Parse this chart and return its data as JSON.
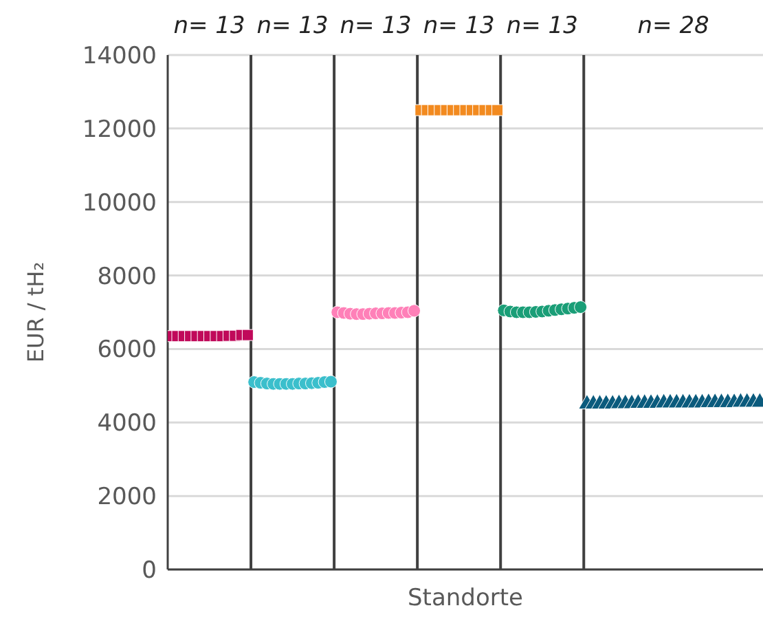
{
  "chart_data": {
    "type": "scatter",
    "xlabel": "Standorte",
    "ylabel": "EUR / tH₂",
    "ylim": [
      0,
      14000
    ],
    "yticks": [
      0,
      2000,
      4000,
      6000,
      8000,
      10000,
      12000,
      14000
    ],
    "tick_labels": "y",
    "grid": true,
    "legend": false,
    "annotations": [
      "n= 13",
      "n= 13",
      "n= 13",
      "n= 13",
      "n= 13",
      "n= 28"
    ],
    "categories": [
      null,
      null,
      null,
      null,
      null,
      null,
      null,
      null,
      null,
      null,
      null,
      null,
      null,
      null,
      null,
      null,
      null,
      null,
      null,
      null,
      null,
      null,
      null,
      null,
      null,
      null,
      null,
      null,
      null,
      null,
      null,
      null,
      null,
      null,
      null,
      null,
      null,
      null,
      null,
      null,
      null,
      null,
      null,
      null,
      null,
      null,
      null,
      null,
      null,
      null,
      null,
      null,
      null,
      null,
      null,
      null,
      null,
      null,
      null,
      null,
      null,
      null,
      null,
      null,
      null,
      null,
      null,
      null,
      null,
      null,
      null,
      null,
      null,
      null,
      null,
      null,
      null,
      null,
      null,
      null,
      null,
      null,
      null,
      null,
      null,
      null,
      null,
      null,
      null,
      null,
      null,
      null,
      null
    ],
    "series": [
      {
        "color": "#c0095a",
        "marker": "square",
        "values": [
          6350,
          6350,
          6350,
          6350,
          6350,
          6350,
          6350,
          6350,
          6350,
          6360,
          6360,
          6380,
          6380,
          null,
          null,
          null,
          null,
          null,
          null,
          null,
          null,
          null,
          null,
          null,
          null,
          null,
          null,
          null,
          null,
          null,
          null,
          null,
          null,
          null,
          null,
          null,
          null,
          null,
          null,
          null,
          null,
          null,
          null,
          null,
          null,
          null,
          null,
          null,
          null,
          null,
          null,
          null,
          null,
          null,
          null,
          null,
          null,
          null,
          null,
          null,
          null,
          null,
          null,
          null,
          null,
          null,
          null,
          null,
          null,
          null,
          null,
          null,
          null,
          null,
          null,
          null,
          null,
          null,
          null,
          null,
          null,
          null,
          null,
          null,
          null,
          null,
          null,
          null,
          null,
          null,
          null,
          null,
          null
        ]
      },
      {
        "color": "#3bbfcc",
        "marker": "circle",
        "values": [
          null,
          null,
          null,
          null,
          null,
          null,
          null,
          null,
          null,
          null,
          null,
          null,
          null,
          5100,
          5080,
          5060,
          5050,
          5050,
          5050,
          5050,
          5060,
          5060,
          5070,
          5080,
          5100,
          5110,
          null,
          null,
          null,
          null,
          null,
          null,
          null,
          null,
          null,
          null,
          null,
          null,
          null,
          null,
          null,
          null,
          null,
          null,
          null,
          null,
          null,
          null,
          null,
          null,
          null,
          null,
          null,
          null,
          null,
          null,
          null,
          null,
          null,
          null,
          null,
          null,
          null,
          null,
          null,
          null,
          null,
          null,
          null,
          null,
          null,
          null,
          null,
          null,
          null,
          null,
          null,
          null,
          null,
          null,
          null,
          null,
          null,
          null,
          null,
          null,
          null,
          null,
          null,
          null,
          null,
          null,
          null
        ]
      },
      {
        "color": "#ff80b8",
        "marker": "circle",
        "values": [
          null,
          null,
          null,
          null,
          null,
          null,
          null,
          null,
          null,
          null,
          null,
          null,
          null,
          null,
          null,
          null,
          null,
          null,
          null,
          null,
          null,
          null,
          null,
          null,
          null,
          null,
          7000,
          6980,
          6960,
          6950,
          6950,
          6960,
          6970,
          6970,
          6980,
          6980,
          6990,
          7000,
          7040,
          null,
          null,
          null,
          null,
          null,
          null,
          null,
          null,
          null,
          null,
          null,
          null,
          null,
          null,
          null,
          null,
          null,
          null,
          null,
          null,
          null,
          null,
          null,
          null,
          null,
          null,
          null,
          null,
          null,
          null,
          null,
          null,
          null,
          null,
          null,
          null,
          null,
          null,
          null,
          null,
          null,
          null,
          null,
          null,
          null,
          null,
          null,
          null,
          null,
          null,
          null,
          null,
          null,
          null
        ]
      },
      {
        "color": "#f28a1f",
        "marker": "square",
        "values": [
          null,
          null,
          null,
          null,
          null,
          null,
          null,
          null,
          null,
          null,
          null,
          null,
          null,
          null,
          null,
          null,
          null,
          null,
          null,
          null,
          null,
          null,
          null,
          null,
          null,
          null,
          null,
          null,
          null,
          null,
          null,
          null,
          null,
          null,
          null,
          null,
          null,
          null,
          null,
          12500,
          12500,
          12500,
          12500,
          12500,
          12500,
          12500,
          12500,
          12500,
          12500,
          12500,
          12500,
          12500,
          null,
          null,
          null,
          null,
          null,
          null,
          null,
          null,
          null,
          null,
          null,
          null,
          null,
          null,
          null,
          null,
          null,
          null,
          null,
          null,
          null,
          null,
          null,
          null,
          null,
          null,
          null,
          null,
          null,
          null,
          null,
          null,
          null,
          null,
          null,
          null,
          null,
          null,
          null,
          null,
          null
        ]
      },
      {
        "color": "#1a9e77",
        "marker": "circle",
        "values": [
          null,
          null,
          null,
          null,
          null,
          null,
          null,
          null,
          null,
          null,
          null,
          null,
          null,
          null,
          null,
          null,
          null,
          null,
          null,
          null,
          null,
          null,
          null,
          null,
          null,
          null,
          null,
          null,
          null,
          null,
          null,
          null,
          null,
          null,
          null,
          null,
          null,
          null,
          null,
          null,
          null,
          null,
          null,
          null,
          null,
          null,
          null,
          null,
          null,
          null,
          null,
          null,
          7050,
          7020,
          7000,
          7000,
          7000,
          7010,
          7020,
          7040,
          7060,
          7080,
          7100,
          7120,
          7140,
          null,
          null,
          null,
          null,
          null,
          null,
          null,
          null,
          null,
          null,
          null,
          null,
          null,
          null,
          null,
          null,
          null,
          null,
          null,
          null,
          null,
          null,
          null,
          null,
          null,
          null,
          null,
          null
        ]
      },
      {
        "color": "#0b5b7d",
        "marker": "triangle",
        "values": [
          null,
          null,
          null,
          null,
          null,
          null,
          null,
          null,
          null,
          null,
          null,
          null,
          null,
          null,
          null,
          null,
          null,
          null,
          null,
          null,
          null,
          null,
          null,
          null,
          null,
          null,
          null,
          null,
          null,
          null,
          null,
          null,
          null,
          null,
          null,
          null,
          null,
          null,
          null,
          null,
          null,
          null,
          null,
          null,
          null,
          null,
          null,
          null,
          null,
          null,
          null,
          null,
          null,
          null,
          null,
          null,
          null,
          null,
          null,
          null,
          null,
          null,
          null,
          null,
          null,
          4500,
          4500,
          4500,
          4500,
          4500,
          4510,
          4510,
          4510,
          4520,
          4520,
          4520,
          4520,
          4530,
          4530,
          4530,
          4530,
          4530,
          4530,
          4530,
          4540,
          4540,
          4540,
          4540,
          4540,
          4550,
          4550,
          4550,
          4550
        ]
      }
    ]
  }
}
